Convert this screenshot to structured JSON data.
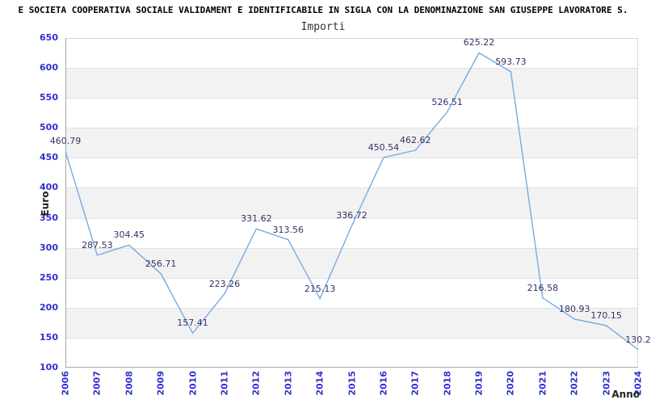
{
  "chart_data": {
    "type": "line",
    "title": "E SOCIETA COOPERATIVA SOCIALE VALIDAMENT E IDENTIFICABILE IN SIGLA CON LA DENOMINAZIONE SAN GIUSEPPE LAVORATORE S.",
    "subtitle": "Importi",
    "xlabel": "Anno",
    "ylabel": "Euro",
    "x": [
      "2006",
      "2007",
      "2008",
      "2009",
      "2010",
      "2011",
      "2012",
      "2013",
      "2014",
      "2015",
      "2016",
      "2017",
      "2018",
      "2019",
      "2020",
      "2021",
      "2022",
      "2023",
      "2024"
    ],
    "values": [
      460.79,
      287.53,
      304.45,
      256.71,
      157.41,
      223.26,
      331.62,
      313.56,
      215.13,
      336.72,
      450.54,
      462.62,
      526.51,
      625.22,
      593.73,
      216.58,
      180.93,
      170.15,
      130.2
    ],
    "point_labels": [
      "460.79",
      "287.53",
      "304.45",
      "256.71",
      "157.41",
      "223.26",
      "331.62",
      "313.56",
      "215.13",
      "336.72",
      "450.54",
      "462.62",
      "526.51",
      "625.22",
      "593.73",
      "216.58",
      "180.93",
      "170.15",
      "130.2"
    ],
    "ylim": [
      100,
      650
    ],
    "ytick_step": 50,
    "grid": "horizontal",
    "plot_bands": "alternating-gray-every-other-50",
    "legend": "none",
    "colors": {
      "line": "#76abe2",
      "tick_labels": "#3030cf",
      "point_labels": "#333366",
      "band": "#f2f2f2",
      "gridline": "#e2e2e2",
      "title": "#000000",
      "subtitle": "#333333",
      "axis_titles": "#222222"
    }
  }
}
